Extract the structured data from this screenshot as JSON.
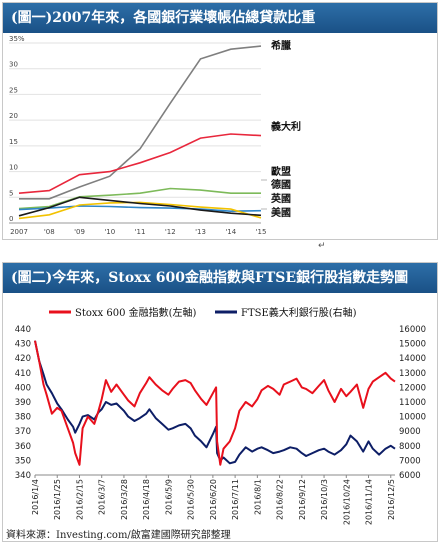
{
  "chart_data": [
    {
      "type": "line",
      "title": "(圖一)2007年來，各國銀行業壞帳佔總貸款比重",
      "x": [
        "2007",
        "'08",
        "'09",
        "'10",
        "'11",
        "'12",
        "'13",
        "'14",
        "'15"
      ],
      "ylim": [
        0,
        35
      ],
      "y_ticks": [
        "35%",
        "30",
        "25",
        "20",
        "15",
        "10",
        "5",
        "0"
      ],
      "grid": true,
      "series": [
        {
          "name": "希臘",
          "color": "#7f7f7f",
          "values": [
            4.7,
            4.7,
            7.0,
            9.1,
            14.4,
            23.3,
            31.9,
            33.8,
            34.4
          ]
        },
        {
          "name": "義大利",
          "color": "#e8273c",
          "values": [
            5.8,
            6.3,
            9.4,
            10.0,
            11.7,
            13.7,
            16.5,
            17.3,
            17.0
          ]
        },
        {
          "name": "歐盟",
          "color": "#7dba5a",
          "values": [
            2.8,
            3.2,
            5.1,
            5.4,
            5.8,
            6.7,
            6.4,
            5.8,
            5.8
          ]
        },
        {
          "name": "德國",
          "color": "#2f86c9",
          "values": [
            2.6,
            2.9,
            3.3,
            3.2,
            3.0,
            2.9,
            2.7,
            2.3,
            2.4
          ]
        },
        {
          "name": "英國",
          "color": "#f2c200",
          "values": [
            0.9,
            1.6,
            3.5,
            3.9,
            4.0,
            3.6,
            3.1,
            2.7,
            1.0
          ]
        },
        {
          "name": "美國",
          "color": "#1a1a1a",
          "values": [
            1.4,
            3.0,
            5.0,
            4.4,
            3.8,
            3.3,
            2.5,
            1.9,
            1.5
          ]
        }
      ]
    },
    {
      "type": "line",
      "title": "(圖二)今年來，Stoxx 600金融指數與FTSE銀行股指數走勢圖",
      "x_ticks": [
        "2016/1/4",
        "2016/1/25",
        "2016/2/15",
        "2016/3/7",
        "2016/3/28",
        "2016/4/18",
        "2016/5/9",
        "2016/5/30",
        "2016/6/20",
        "2016/7/11",
        "2016/8/1",
        "2016/8/22",
        "2016/9/12",
        "2016/10/3",
        "2016/10/24",
        "2016/11/14",
        "2016/12/5"
      ],
      "ylim_left": [
        340,
        440
      ],
      "y_ticks_left": [
        "440",
        "430",
        "420",
        "410",
        "400",
        "390",
        "380",
        "370",
        "360",
        "350",
        "340"
      ],
      "ylim_right": [
        6000,
        16000
      ],
      "y_ticks_right": [
        "16000",
        "15000",
        "14000",
        "13000",
        "12000",
        "11000",
        "10000",
        "9000",
        "8000",
        "7000",
        "6000"
      ],
      "legend": "top",
      "series": [
        {
          "name": "Stoxx 600 金融指數(左軸)",
          "axis": "left",
          "color": "#e8101c",
          "dates": [
            "2016/1/4",
            "2016/1/8",
            "2016/1/12",
            "2016/1/15",
            "2016/1/20",
            "2016/1/25",
            "2016/1/29",
            "2016/2/4",
            "2016/2/9",
            "2016/2/11",
            "2016/2/15",
            "2016/2/18",
            "2016/2/23",
            "2016/2/29",
            "2016/3/4",
            "2016/3/7",
            "2016/3/11",
            "2016/3/16",
            "2016/3/21",
            "2016/3/28",
            "2016/4/1",
            "2016/4/7",
            "2016/4/12",
            "2016/4/18",
            "2016/4/21",
            "2016/4/27",
            "2016/5/3",
            "2016/5/9",
            "2016/5/13",
            "2016/5/19",
            "2016/5/25",
            "2016/5/30",
            "2016/6/3",
            "2016/6/9",
            "2016/6/14",
            "2016/6/20",
            "2016/6/23",
            "2016/6/24",
            "2016/6/27",
            "2016/6/30",
            "2016/7/6",
            "2016/7/11",
            "2016/7/15",
            "2016/7/21",
            "2016/7/27",
            "2016/8/1",
            "2016/8/5",
            "2016/8/11",
            "2016/8/16",
            "2016/8/22",
            "2016/8/26",
            "2016/9/1",
            "2016/9/7",
            "2016/9/12",
            "2016/9/16",
            "2016/9/22",
            "2016/9/28",
            "2016/10/3",
            "2016/10/7",
            "2016/10/13",
            "2016/10/19",
            "2016/10/24",
            "2016/10/28",
            "2016/11/3",
            "2016/11/9",
            "2016/11/14",
            "2016/11/18",
            "2016/11/24",
            "2016/11/30",
            "2016/12/5",
            "2016/12/9"
          ],
          "values": [
            432,
            418,
            402,
            395,
            382,
            386,
            384,
            372,
            362,
            355,
            347,
            372,
            380,
            375,
            384,
            392,
            405,
            397,
            402,
            395,
            391,
            387,
            396,
            403,
            407,
            402,
            398,
            395,
            399,
            404,
            405,
            403,
            398,
            392,
            388,
            396,
            400,
            363,
            347,
            358,
            363,
            372,
            384,
            390,
            387,
            392,
            398,
            401,
            399,
            395,
            402,
            404,
            406,
            400,
            399,
            396,
            401,
            405,
            398,
            390,
            399,
            394,
            397,
            402,
            386,
            399,
            404,
            407,
            410,
            406,
            404
          ]
        },
        {
          "name": "FTSE義大利銀行股(右軸)",
          "axis": "right",
          "color": "#0d1e66",
          "dates": [
            "2016/1/4",
            "2016/1/8",
            "2016/1/12",
            "2016/1/15",
            "2016/1/20",
            "2016/1/25",
            "2016/1/29",
            "2016/2/4",
            "2016/2/9",
            "2016/2/11",
            "2016/2/15",
            "2016/2/18",
            "2016/2/23",
            "2016/2/29",
            "2016/3/4",
            "2016/3/7",
            "2016/3/11",
            "2016/3/16",
            "2016/3/21",
            "2016/3/28",
            "2016/4/1",
            "2016/4/7",
            "2016/4/12",
            "2016/4/18",
            "2016/4/21",
            "2016/4/27",
            "2016/5/3",
            "2016/5/9",
            "2016/5/13",
            "2016/5/19",
            "2016/5/25",
            "2016/5/30",
            "2016/6/3",
            "2016/6/9",
            "2016/6/14",
            "2016/6/20",
            "2016/6/23",
            "2016/6/24",
            "2016/6/27",
            "2016/6/30",
            "2016/7/6",
            "2016/7/11",
            "2016/7/15",
            "2016/7/21",
            "2016/7/27",
            "2016/8/1",
            "2016/8/5",
            "2016/8/11",
            "2016/8/16",
            "2016/8/22",
            "2016/8/26",
            "2016/9/1",
            "2016/9/7",
            "2016/9/12",
            "2016/9/16",
            "2016/9/22",
            "2016/9/28",
            "2016/10/3",
            "2016/10/7",
            "2016/10/13",
            "2016/10/19",
            "2016/10/24",
            "2016/10/28",
            "2016/11/3",
            "2016/11/9",
            "2016/11/14",
            "2016/11/18",
            "2016/11/24",
            "2016/11/30",
            "2016/12/5",
            "2016/12/9"
          ],
          "values": [
            15200,
            13800,
            12900,
            12200,
            11600,
            10900,
            10500,
            9800,
            9300,
            8900,
            9500,
            10000,
            10100,
            9800,
            10300,
            10500,
            11000,
            10800,
            10900,
            10400,
            10000,
            9700,
            9900,
            10200,
            10500,
            9900,
            9500,
            9100,
            9200,
            9400,
            9500,
            9200,
            8700,
            8300,
            7900,
            8800,
            9300,
            7500,
            7000,
            7200,
            6800,
            6900,
            7400,
            7900,
            7600,
            7800,
            7900,
            7700,
            7500,
            7600,
            7700,
            7900,
            7800,
            7500,
            7300,
            7500,
            7700,
            7800,
            7600,
            7400,
            7700,
            8100,
            8700,
            8300,
            7600,
            8300,
            7800,
            7400,
            7800,
            8000,
            7800
          ]
        }
      ]
    }
  ],
  "source_text": "資料來源：Investing.com/啟富建國際研究部整理"
}
